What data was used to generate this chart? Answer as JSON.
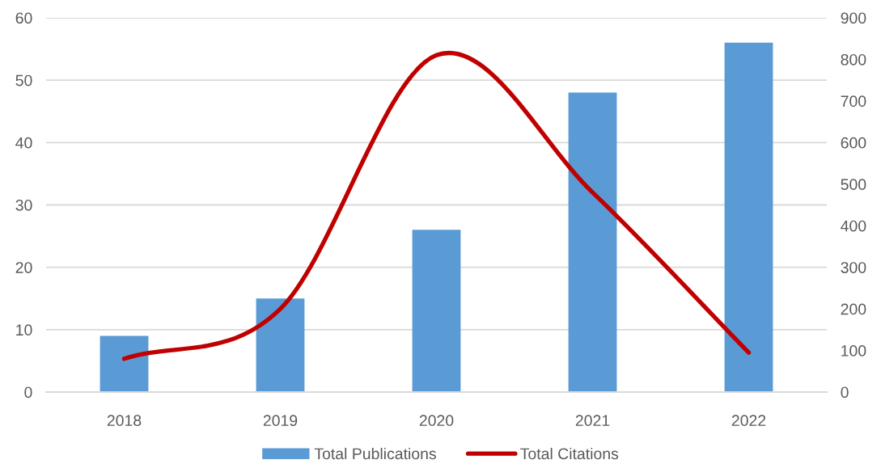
{
  "chart_data": {
    "type": "bar",
    "categories": [
      "2018",
      "2019",
      "2020",
      "2021",
      "2022"
    ],
    "series": [
      {
        "name": "Total Publications",
        "color": "#5b9bd5",
        "values": [
          9,
          15,
          26,
          48,
          56
        ]
      },
      {
        "name": "Total Citations",
        "type": "line",
        "axis": "y2",
        "color": "#c00000",
        "values": [
          80,
          200,
          810,
          480,
          95
        ]
      }
    ],
    "ylim": [
      0,
      60
    ],
    "yticks": [
      0,
      10,
      20,
      30,
      40,
      50,
      60
    ],
    "y2lim": [
      0,
      900
    ],
    "y2ticks": [
      0,
      100,
      200,
      300,
      400,
      500,
      600,
      700,
      800,
      900
    ],
    "grid": "y",
    "legend": "bottom",
    "line_style": "solid"
  }
}
